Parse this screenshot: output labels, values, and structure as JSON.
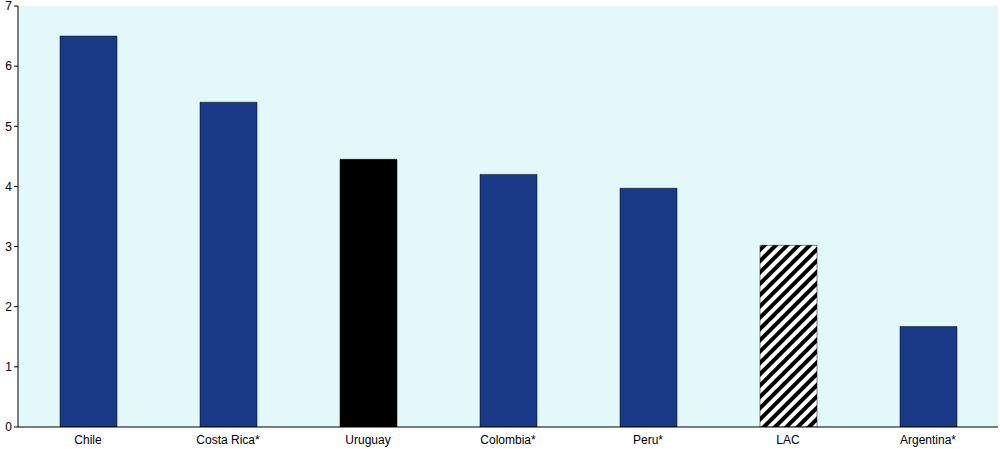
{
  "chart_data": {
    "type": "bar",
    "categories": [
      "Chile",
      "Costa Rica*",
      "Uruguay",
      "Colombia*",
      "Peru*",
      "LAC",
      "Argentina*"
    ],
    "values": [
      6.5,
      5.4,
      4.45,
      4.2,
      3.97,
      3.02,
      1.67
    ],
    "colors": [
      "#1a3a87",
      "#1a3a87",
      "#000000",
      "#1a3a87",
      "#1a3a87",
      "#000000",
      "#1a3a87"
    ],
    "ylim": [
      0,
      7
    ],
    "yticks": [
      0,
      1,
      2,
      3,
      4,
      5,
      6,
      7
    ],
    "grid": true
  }
}
